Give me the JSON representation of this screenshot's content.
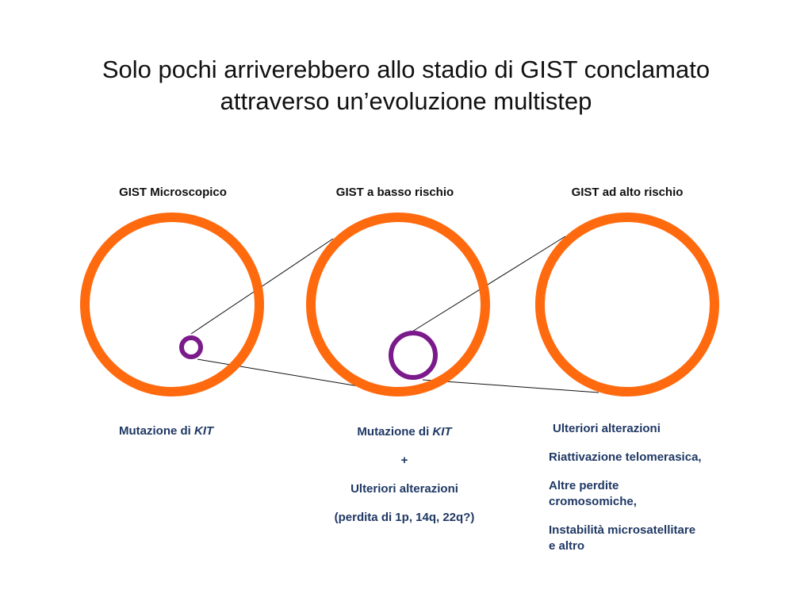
{
  "title": {
    "line1": "Solo pochi arriverebbero allo stadio di GIST conclamato",
    "line2": "attraverso un’evoluzione multistep"
  },
  "stages": [
    {
      "label": "GIST Microscopico"
    },
    {
      "label": "GIST a basso rischio"
    },
    {
      "label": "GIST ad alto rischio"
    }
  ],
  "descriptions": {
    "stage1": {
      "prefix": "Mutazione di ",
      "gene": "KIT"
    },
    "stage2": {
      "prefix": "Mutazione di ",
      "gene": "KIT",
      "plus": "+",
      "line3": "Ulteriori alterazioni",
      "line4": "(perdita di 1p, 14q, 22q?)"
    },
    "stage3": {
      "heading": "Ulteriori alterazioni",
      "item1": "Riattivazione telomerasica,",
      "item2a": "Altre perdite",
      "item2b": "cromosomiche,",
      "item3a": "Instabilità microsatellitare",
      "item3b": "e altro"
    }
  },
  "colors": {
    "outer_circle": "#ff6a0f",
    "inner_circle": "#7b1a8a",
    "text_blue": "#1f3864",
    "line": "#111111"
  }
}
